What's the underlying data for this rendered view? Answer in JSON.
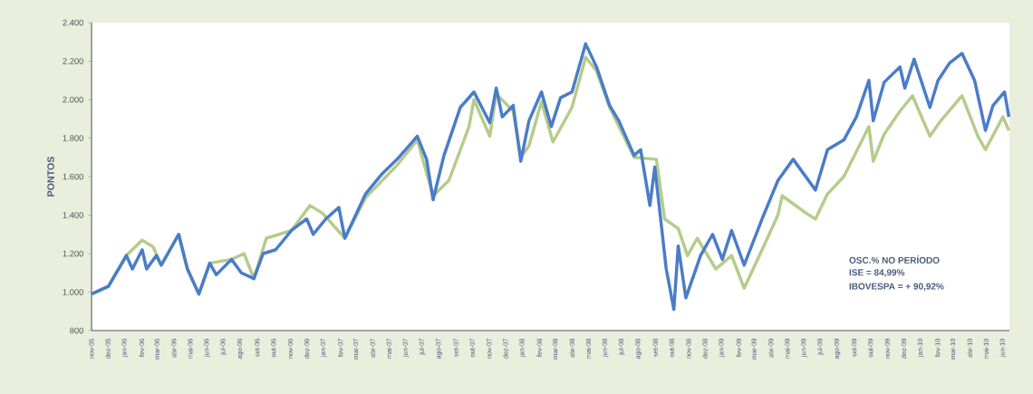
{
  "chart_data": {
    "type": "line",
    "ylabel": "PONTOS",
    "annotations": [
      "OSC.% NO PERÍODO",
      "ISE = 84,99%",
      "IBOVESPA = + 90,92%"
    ],
    "xlim": [
      "2005-11-01",
      "2010-06-13"
    ],
    "ylim": [
      800,
      2400
    ],
    "yticks": [
      800,
      {
        "value": 1000,
        "label": "1.000"
      },
      {
        "value": 1200,
        "label": "1.200"
      },
      {
        "value": 1400,
        "label": "1.400"
      },
      {
        "value": 1600,
        "label": "1.600"
      },
      {
        "value": 1800,
        "label": "1.800"
      },
      {
        "value": 2000,
        "label": "2.000"
      },
      {
        "value": 2200,
        "label": "2.200"
      },
      {
        "value": 2400,
        "label": "2.400"
      }
    ],
    "xticks": [
      {
        "value": "2005-11-01",
        "label": "nov-05"
      },
      {
        "value": "2005-12-01",
        "label": "dez-05"
      },
      {
        "value": "2006-01-01",
        "label": "jan-06"
      },
      {
        "value": "2006-02-01",
        "label": "fev-06"
      },
      {
        "value": "2006-03-01",
        "label": "mar-06"
      },
      {
        "value": "2006-04-01",
        "label": "abr-06"
      },
      {
        "value": "2006-05-01",
        "label": "mai-06"
      },
      {
        "value": "2006-06-01",
        "label": "jun-06"
      },
      {
        "value": "2006-07-01",
        "label": "jul-06"
      },
      {
        "value": "2006-08-01",
        "label": "ago-06"
      },
      {
        "value": "2006-09-01",
        "label": "set-06"
      },
      {
        "value": "2006-10-01",
        "label": "out-06"
      },
      {
        "value": "2006-11-01",
        "label": "nov-06"
      },
      {
        "value": "2006-12-01",
        "label": "dez-06"
      },
      {
        "value": "2007-01-01",
        "label": "jan-07"
      },
      {
        "value": "2007-02-01",
        "label": "fev-07"
      },
      {
        "value": "2007-03-01",
        "label": "mar-07"
      },
      {
        "value": "2007-04-01",
        "label": "abr-07"
      },
      {
        "value": "2007-05-01",
        "label": "mai-07"
      },
      {
        "value": "2007-06-01",
        "label": "jun-07"
      },
      {
        "value": "2007-07-01",
        "label": "jul-07"
      },
      {
        "value": "2007-08-01",
        "label": "ago-07"
      },
      {
        "value": "2007-09-01",
        "label": "set-07"
      },
      {
        "value": "2007-10-01",
        "label": "out-07"
      },
      {
        "value": "2007-11-01",
        "label": "nov-07"
      },
      {
        "value": "2007-12-01",
        "label": "dez-07"
      },
      {
        "value": "2008-01-01",
        "label": "jan-08"
      },
      {
        "value": "2008-02-01",
        "label": "fev-08"
      },
      {
        "value": "2008-03-01",
        "label": "mar-08"
      },
      {
        "value": "2008-04-01",
        "label": "abr-08"
      },
      {
        "value": "2008-05-01",
        "label": "mai-08"
      },
      {
        "value": "2008-06-01",
        "label": "jun-08"
      },
      {
        "value": "2008-07-01",
        "label": "jul-08"
      },
      {
        "value": "2008-08-01",
        "label": "ago-08"
      },
      {
        "value": "2008-09-01",
        "label": "set-08"
      },
      {
        "value": "2008-10-01",
        "label": "out-08"
      },
      {
        "value": "2008-11-01",
        "label": "nov-08"
      },
      {
        "value": "2008-12-01",
        "label": "dez-08"
      },
      {
        "value": "2009-01-01",
        "label": "jan-09"
      },
      {
        "value": "2009-02-01",
        "label": "fev-09"
      },
      {
        "value": "2009-03-01",
        "label": "mar-09"
      },
      {
        "value": "2009-04-01",
        "label": "abr-09"
      },
      {
        "value": "2009-05-01",
        "label": "mai-09"
      },
      {
        "value": "2009-06-01",
        "label": "jun-09"
      },
      {
        "value": "2009-07-01",
        "label": "jul-09"
      },
      {
        "value": "2009-08-01",
        "label": "ago-09"
      },
      {
        "value": "2009-09-01",
        "label": "set-09"
      },
      {
        "value": "2009-10-01",
        "label": "out-09"
      },
      {
        "value": "2009-11-01",
        "label": "nov-09"
      },
      {
        "value": "2009-12-01",
        "label": "dez-09"
      },
      {
        "value": "2010-01-01",
        "label": "jan-10"
      },
      {
        "value": "2010-02-01",
        "label": "fev-10"
      },
      {
        "value": "2010-03-01",
        "label": "mar-10"
      },
      {
        "value": "2010-04-01",
        "label": "abr-10"
      },
      {
        "value": "2010-05-01",
        "label": "mai-10"
      },
      {
        "value": "2010-06-01",
        "label": "jun-10"
      }
    ],
    "legend": false,
    "marker": "none",
    "line_style": "solid",
    "grid": false,
    "series": [
      {
        "color": "#b5cc8a",
        "x": [
          "2005-11-01",
          "2005-12-02",
          "2006-01-04",
          "2006-02-02",
          "2006-02-22",
          "2006-03-09",
          "2006-04-10",
          "2006-04-26",
          "2006-05-17",
          "2006-06-06",
          "2006-07-16",
          "2006-08-08",
          "2006-08-26",
          "2006-09-18",
          "2006-11-03",
          "2006-12-07",
          "2006-12-30",
          "2007-02-09",
          "2007-03-19",
          "2007-05-16",
          "2007-06-22",
          "2007-07-21",
          "2007-08-19",
          "2007-09-25",
          "2007-10-04",
          "2007-11-02",
          "2007-11-14",
          "2007-12-15",
          "2007-12-29",
          "2008-01-13",
          "2008-02-05",
          "2008-02-26",
          "2008-04-01",
          "2008-04-26",
          "2008-05-16",
          "2008-06-09",
          "2008-07-24",
          "2008-09-03",
          "2008-09-18",
          "2008-10-13",
          "2008-10-30",
          "2008-11-17",
          "2008-12-21",
          "2009-01-19",
          "2009-02-11",
          "2009-03-16",
          "2009-04-14",
          "2009-04-22",
          "2009-06-05",
          "2009-06-22",
          "2009-07-14",
          "2009-08-13",
          "2009-09-05",
          "2009-09-28",
          "2009-10-06",
          "2009-10-26",
          "2009-11-24",
          "2009-12-17",
          "2010-01-18",
          "2010-02-07",
          "2010-03-18",
          "2010-04-16",
          "2010-04-30",
          "2010-06-01",
          "2010-06-12"
        ],
        "values": [
          990,
          1030,
          1190,
          1270,
          1235,
          1140,
          1300,
          1120,
          990,
          1150,
          1170,
          1200,
          1070,
          1280,
          1320,
          1450,
          1410,
          1280,
          1490,
          1660,
          1790,
          1500,
          1580,
          1860,
          2000,
          1810,
          2030,
          1940,
          1700,
          1760,
          1990,
          1780,
          1960,
          2220,
          2150,
          1960,
          1700,
          1690,
          1380,
          1330,
          1190,
          1280,
          1120,
          1190,
          1020,
          1220,
          1400,
          1500,
          1410,
          1380,
          1510,
          1600,
          1730,
          1860,
          1680,
          1820,
          1940,
          2020,
          1810,
          1890,
          2020,
          1810,
          1740,
          1910,
          1840
        ]
      },
      {
        "color": "#4a7cc9",
        "x": [
          "2005-11-01",
          "2005-12-02",
          "2006-01-04",
          "2006-01-15",
          "2006-02-02",
          "2006-02-10",
          "2006-02-28",
          "2006-03-09",
          "2006-04-10",
          "2006-04-26",
          "2006-05-17",
          "2006-06-06",
          "2006-06-18",
          "2006-07-16",
          "2006-08-03",
          "2006-08-26",
          "2006-09-12",
          "2006-10-05",
          "2006-11-03",
          "2006-12-01",
          "2006-12-13",
          "2007-01-05",
          "2007-01-29",
          "2007-02-09",
          "2007-03-19",
          "2007-04-17",
          "2007-05-16",
          "2007-06-22",
          "2007-07-09",
          "2007-07-21",
          "2007-08-10",
          "2007-09-09",
          "2007-10-04",
          "2007-11-02",
          "2007-11-14",
          "2007-11-25",
          "2007-12-15",
          "2007-12-29",
          "2008-01-13",
          "2008-02-05",
          "2008-02-23",
          "2008-03-11",
          "2008-04-01",
          "2008-04-26",
          "2008-05-16",
          "2008-06-09",
          "2008-06-26",
          "2008-07-24",
          "2008-08-05",
          "2008-08-22",
          "2008-08-31",
          "2008-09-21",
          "2008-10-05",
          "2008-10-13",
          "2008-10-27",
          "2008-11-23",
          "2008-12-15",
          "2009-01-02",
          "2009-01-19",
          "2009-02-11",
          "2009-03-16",
          "2009-04-14",
          "2009-05-12",
          "2009-06-22",
          "2009-07-14",
          "2009-08-13",
          "2009-09-05",
          "2009-09-28",
          "2009-10-06",
          "2009-10-26",
          "2009-11-24",
          "2009-12-03",
          "2009-12-20",
          "2010-01-18",
          "2010-02-02",
          "2010-02-23",
          "2010-03-18",
          "2010-04-10",
          "2010-04-30",
          "2010-05-14",
          "2010-06-04",
          "2010-06-12"
        ],
        "values": [
          990,
          1030,
          1190,
          1120,
          1220,
          1120,
          1190,
          1140,
          1300,
          1120,
          990,
          1150,
          1090,
          1170,
          1100,
          1070,
          1200,
          1220,
          1320,
          1380,
          1300,
          1380,
          1440,
          1280,
          1510,
          1610,
          1690,
          1810,
          1690,
          1480,
          1710,
          1960,
          2040,
          1880,
          2060,
          1910,
          1970,
          1680,
          1890,
          2040,
          1860,
          2010,
          2040,
          2290,
          2170,
          1970,
          1890,
          1710,
          1740,
          1450,
          1650,
          1120,
          910,
          1240,
          970,
          1190,
          1300,
          1170,
          1320,
          1140,
          1380,
          1580,
          1690,
          1530,
          1740,
          1790,
          1910,
          2100,
          1890,
          2090,
          2170,
          2060,
          2210,
          1960,
          2100,
          2190,
          2240,
          2100,
          1840,
          1970,
          2040,
          1910
        ]
      }
    ]
  }
}
